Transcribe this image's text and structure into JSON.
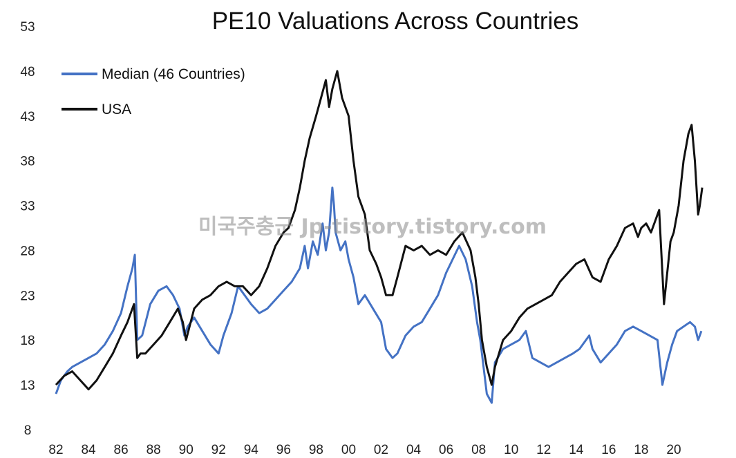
{
  "watermark": "미국주충군 Jp-tistory.tistory.com",
  "chart_data": {
    "type": "line",
    "title": "PE10 Valuations Across Countries",
    "xlabel": "",
    "ylabel": "",
    "xlim": [
      1982,
      2022
    ],
    "ylim": [
      8,
      53
    ],
    "yticks": [
      8,
      13,
      18,
      23,
      28,
      33,
      38,
      43,
      48,
      53
    ],
    "xticks": [
      {
        "value": 1982,
        "label": "82"
      },
      {
        "value": 1984,
        "label": "84"
      },
      {
        "value": 1986,
        "label": "86"
      },
      {
        "value": 1988,
        "label": "88"
      },
      {
        "value": 1990,
        "label": "90"
      },
      {
        "value": 1992,
        "label": "92"
      },
      {
        "value": 1994,
        "label": "94"
      },
      {
        "value": 1996,
        "label": "96"
      },
      {
        "value": 1998,
        "label": "98"
      },
      {
        "value": 2000,
        "label": "00"
      },
      {
        "value": 2002,
        "label": "02"
      },
      {
        "value": 2004,
        "label": "04"
      },
      {
        "value": 2006,
        "label": "06"
      },
      {
        "value": 2008,
        "label": "08"
      },
      {
        "value": 2010,
        "label": "10"
      },
      {
        "value": 2012,
        "label": "12"
      },
      {
        "value": 2014,
        "label": "14"
      },
      {
        "value": 2016,
        "label": "16"
      },
      {
        "value": 2018,
        "label": "18"
      },
      {
        "value": 2020,
        "label": "20"
      }
    ],
    "grid": false,
    "legend_position": "top-left",
    "series": [
      {
        "name": "Median (46 Countries)",
        "color": "#4472c4",
        "x": [
          1982.0,
          1982.3,
          1982.7,
          1983.0,
          1983.5,
          1984.0,
          1984.5,
          1985.0,
          1985.5,
          1986.0,
          1986.4,
          1986.7,
          1986.85,
          1987.0,
          1987.3,
          1987.8,
          1988.3,
          1988.8,
          1989.2,
          1989.6,
          1989.9,
          1990.1,
          1990.5,
          1991.0,
          1991.5,
          1992.0,
          1992.3,
          1992.8,
          1993.2,
          1993.6,
          1994.0,
          1994.5,
          1995.0,
          1995.5,
          1996.0,
          1996.5,
          1997.0,
          1997.3,
          1997.5,
          1997.8,
          1998.1,
          1998.4,
          1998.6,
          1998.8,
          1999.0,
          1999.1,
          1999.2,
          1999.5,
          1999.8,
          2000.0,
          2000.3,
          2000.6,
          2001.0,
          2001.5,
          2002.0,
          2002.3,
          2002.7,
          2003.0,
          2003.5,
          2004.0,
          2004.5,
          2005.0,
          2005.5,
          2006.0,
          2006.4,
          2006.8,
          2007.2,
          2007.6,
          2007.9,
          2008.1,
          2008.3,
          2008.5,
          2008.8,
          2009.0,
          2009.5,
          2010.0,
          2010.5,
          2010.9,
          2011.3,
          2011.8,
          2012.3,
          2012.8,
          2013.3,
          2013.8,
          2014.2,
          2014.6,
          2014.8,
          2015.0,
          2015.5,
          2016.0,
          2016.5,
          2017.0,
          2017.5,
          2018.0,
          2018.5,
          2019.0,
          2019.3,
          2019.6,
          2019.9,
          2020.2,
          2020.6,
          2021.0,
          2021.3,
          2021.5,
          2021.7
        ],
        "values": [
          12.0,
          13.5,
          14.5,
          15.0,
          15.5,
          16.0,
          16.5,
          17.5,
          19.0,
          21.0,
          24.0,
          26.0,
          27.5,
          18.0,
          18.5,
          22.0,
          23.5,
          24.0,
          23.0,
          21.5,
          18.5,
          19.5,
          20.5,
          19.0,
          17.5,
          16.5,
          18.5,
          21.0,
          24.0,
          23.0,
          22.0,
          21.0,
          21.5,
          22.5,
          23.5,
          24.5,
          26.0,
          28.5,
          26.0,
          29.0,
          27.5,
          31.0,
          28.0,
          30.0,
          35.0,
          33.0,
          30.0,
          28.0,
          29.0,
          27.0,
          25.0,
          22.0,
          23.0,
          21.5,
          20.0,
          17.0,
          16.0,
          16.5,
          18.5,
          19.5,
          20.0,
          21.5,
          23.0,
          25.5,
          27.0,
          28.5,
          27.0,
          24.0,
          20.0,
          18.0,
          15.0,
          12.0,
          11.0,
          15.5,
          17.0,
          17.5,
          18.0,
          19.0,
          16.0,
          15.5,
          15.0,
          15.5,
          16.0,
          16.5,
          17.0,
          18.0,
          18.5,
          17.0,
          15.5,
          16.5,
          17.5,
          19.0,
          19.5,
          19.0,
          18.5,
          18.0,
          13.0,
          15.5,
          17.5,
          19.0,
          19.5,
          20.0,
          19.5,
          18.0,
          19.0
        ]
      },
      {
        "name": "USA",
        "color": "#111111",
        "x": [
          1982.0,
          1982.5,
          1983.0,
          1983.5,
          1984.0,
          1984.5,
          1985.0,
          1985.5,
          1986.0,
          1986.4,
          1986.8,
          1987.0,
          1987.2,
          1987.5,
          1988.0,
          1988.5,
          1989.0,
          1989.5,
          1989.8,
          1990.0,
          1990.5,
          1991.0,
          1991.5,
          1992.0,
          1992.5,
          1993.0,
          1993.5,
          1994.0,
          1994.5,
          1995.0,
          1995.5,
          1996.0,
          1996.3,
          1996.7,
          1997.0,
          1997.3,
          1997.6,
          1998.0,
          1998.3,
          1998.6,
          1998.8,
          1999.0,
          1999.3,
          1999.6,
          2000.0,
          2000.3,
          2000.6,
          2001.0,
          2001.3,
          2001.7,
          2002.0,
          2002.3,
          2002.7,
          2003.0,
          2003.5,
          2004.0,
          2004.5,
          2005.0,
          2005.5,
          2006.0,
          2006.5,
          2007.0,
          2007.5,
          2007.8,
          2008.0,
          2008.2,
          2008.5,
          2008.8,
          2009.0,
          2009.5,
          2010.0,
          2010.5,
          2011.0,
          2011.5,
          2012.0,
          2012.5,
          2013.0,
          2013.5,
          2014.0,
          2014.5,
          2015.0,
          2015.5,
          2016.0,
          2016.5,
          2017.0,
          2017.5,
          2017.8,
          2018.0,
          2018.3,
          2018.6,
          2018.9,
          2019.1,
          2019.4,
          2019.8,
          2020.0,
          2020.3,
          2020.6,
          2020.9,
          2021.1,
          2021.3,
          2021.5,
          2021.6,
          2021.75
        ],
        "values": [
          13.0,
          14.0,
          14.5,
          13.5,
          12.5,
          13.5,
          15.0,
          16.5,
          18.5,
          20.0,
          22.0,
          16.0,
          16.5,
          16.5,
          17.5,
          18.5,
          20.0,
          21.5,
          20.0,
          18.0,
          21.5,
          22.5,
          23.0,
          24.0,
          24.5,
          24.0,
          24.0,
          23.0,
          24.0,
          26.0,
          28.5,
          30.0,
          30.5,
          32.5,
          35.0,
          38.0,
          40.5,
          43.0,
          45.0,
          47.0,
          44.0,
          46.0,
          48.0,
          45.0,
          43.0,
          38.0,
          34.0,
          32.0,
          28.0,
          26.5,
          25.0,
          23.0,
          23.0,
          25.0,
          28.5,
          28.0,
          28.5,
          27.5,
          28.0,
          27.5,
          29.0,
          30.0,
          28.0,
          25.0,
          22.0,
          18.0,
          15.0,
          13.0,
          15.0,
          18.0,
          19.0,
          20.5,
          21.5,
          22.0,
          22.5,
          23.0,
          24.5,
          25.5,
          26.5,
          27.0,
          25.0,
          24.5,
          27.0,
          28.5,
          30.5,
          31.0,
          29.5,
          30.5,
          31.0,
          30.0,
          31.5,
          32.5,
          22.0,
          29.0,
          30.0,
          33.0,
          38.0,
          41.0,
          42.0,
          38.0,
          32.0,
          33.0,
          35.0
        ]
      }
    ]
  }
}
